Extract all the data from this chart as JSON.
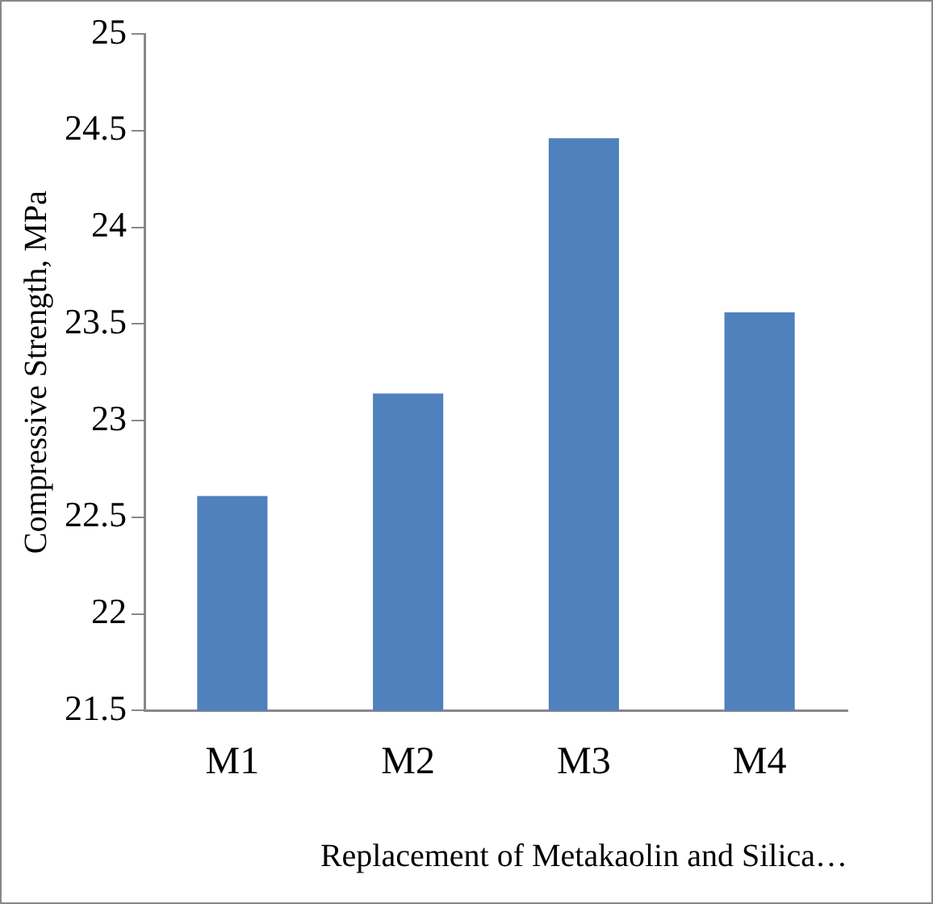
{
  "chart_data": {
    "type": "bar",
    "categories": [
      "M1",
      "M2",
      "M3",
      "M4"
    ],
    "values": [
      22.61,
      23.14,
      24.46,
      23.56
    ],
    "color": "#4f81bd",
    "xlabel": "Replacement of Metakaolin and Silica…",
    "ylabel": "Compressive Strength, MPa",
    "ylim": [
      21.5,
      25
    ],
    "yticks": [
      21.5,
      22,
      22.5,
      23,
      23.5,
      24,
      24.5,
      25
    ],
    "grid": false,
    "legend": false
  }
}
